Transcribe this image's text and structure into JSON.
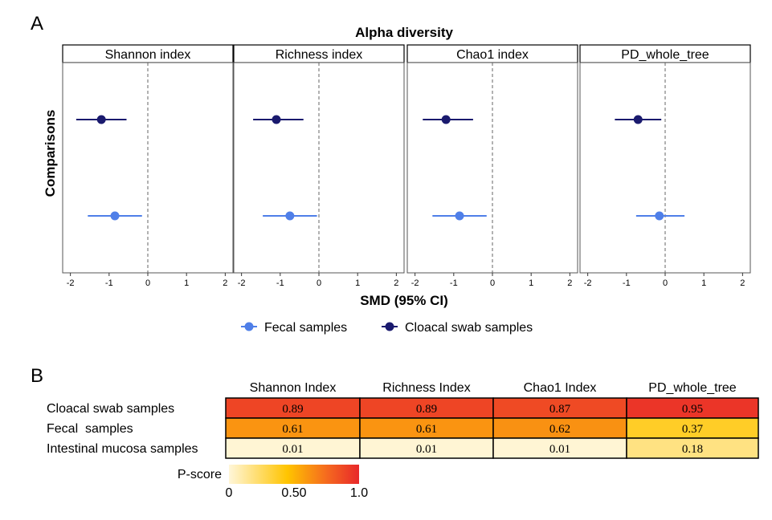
{
  "panel_a": {
    "label": "A",
    "chart_data": {
      "type": "forest",
      "title": "Alpha diversity",
      "xlabel": "SMD (95% CI)",
      "ylabel": "Comparisons",
      "xlim": [
        -2.2,
        2.2
      ],
      "xticks": [
        -2,
        -1,
        0,
        1,
        2
      ],
      "reference_line": 0,
      "legend_position": "bottom",
      "facets": [
        "Shannon index",
        "Richness index",
        "Chao1 index",
        "PD_whole_tree"
      ],
      "series": [
        {
          "name": "Cloacal swab samples",
          "color": "#1a1a6e",
          "points": [
            {
              "facet": "Shannon index",
              "est": -1.2,
              "lo": -1.85,
              "hi": -0.55
            },
            {
              "facet": "Richness index",
              "est": -1.1,
              "lo": -1.7,
              "hi": -0.4
            },
            {
              "facet": "Chao1 index",
              "est": -1.2,
              "lo": -1.8,
              "hi": -0.5
            },
            {
              "facet": "PD_whole_tree",
              "est": -0.7,
              "lo": -1.3,
              "hi": -0.1
            }
          ]
        },
        {
          "name": "Fecal samples",
          "color": "#4f7fe8",
          "points": [
            {
              "facet": "Shannon index",
              "est": -0.85,
              "lo": -1.55,
              "hi": -0.15
            },
            {
              "facet": "Richness index",
              "est": -0.75,
              "lo": -1.45,
              "hi": -0.05
            },
            {
              "facet": "Chao1 index",
              "est": -0.85,
              "lo": -1.55,
              "hi": -0.15
            },
            {
              "facet": "PD_whole_tree",
              "est": -0.15,
              "lo": -0.75,
              "hi": 0.5
            }
          ]
        }
      ],
      "legend_order": [
        "Fecal samples",
        "Cloacal swab samples"
      ]
    }
  },
  "panel_b": {
    "label": "B",
    "chart_data": {
      "type": "heatmap",
      "columns": [
        "Shannon Index",
        "Richness Index",
        "Chao1 Index",
        "PD_whole_tree"
      ],
      "rows": [
        "Cloacal swab samples",
        "Fecal  samples",
        "Intestinal mucosa samples"
      ],
      "values": [
        [
          "0.89",
          "0.89",
          "0.87",
          "0.95"
        ],
        [
          "0.61",
          "0.61",
          "0.62",
          "0.37"
        ],
        [
          "0.01",
          "0.01",
          "0.01",
          "0.18"
        ]
      ],
      "colorbar": {
        "title": "P-score",
        "min": 0,
        "max": 1.0,
        "tick_labels": [
          "0",
          "0.50",
          "1.0"
        ],
        "tick_values": [
          0,
          0.5,
          1.0
        ],
        "colors": [
          "#fff6d9",
          "#ffc400",
          "#f56a1f",
          "#e8282a"
        ]
      }
    }
  }
}
